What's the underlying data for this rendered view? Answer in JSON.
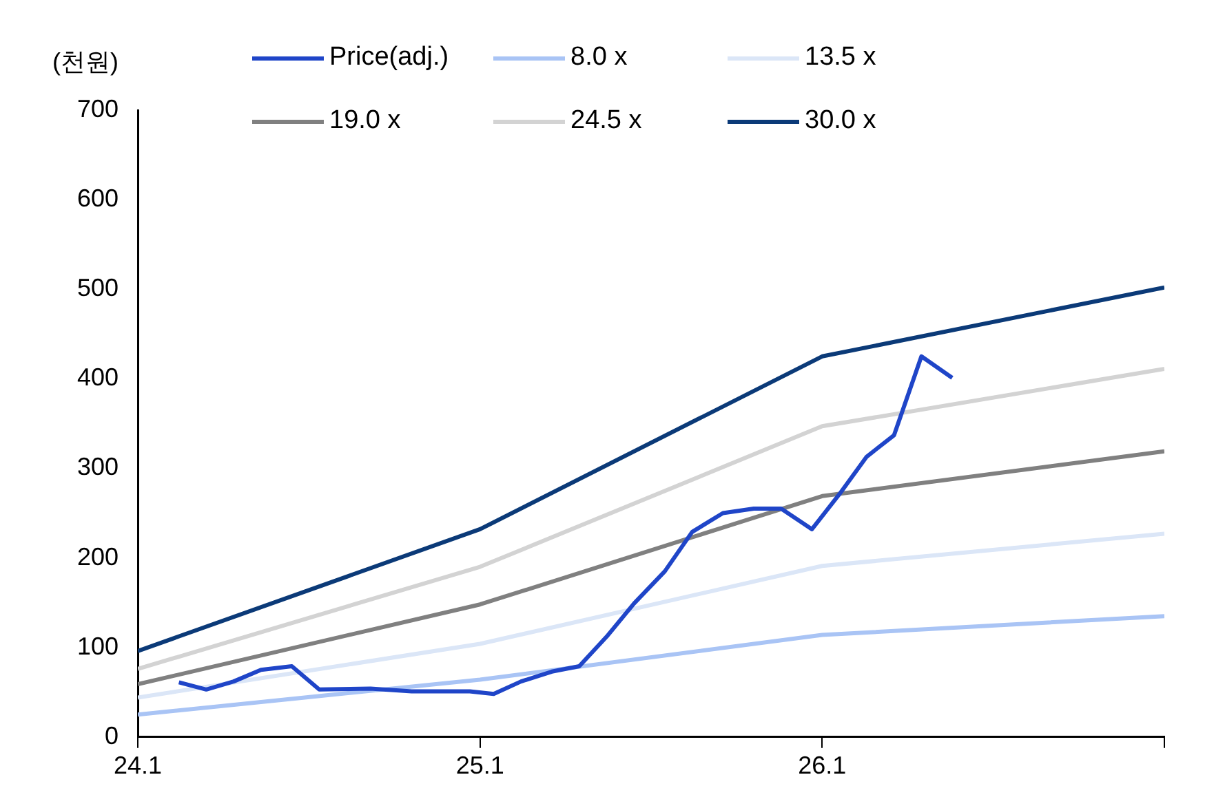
{
  "chart_data": {
    "type": "line",
    "ylabel": "(천원)",
    "xlim": [
      24.1,
      27.1
    ],
    "xticks": [
      24.1,
      25.1,
      26.1,
      {
        "value": 27.1,
        "label": null
      }
    ],
    "ylim": [
      0,
      700
    ],
    "yticks": [
      0,
      100,
      200,
      300,
      400,
      500,
      600,
      700
    ],
    "grid": false,
    "legend": "top",
    "marker": "none",
    "line_style": "solid",
    "series": [
      {
        "name": "Price(adj.)",
        "color": "#1f45c8",
        "x": [
          24.22,
          24.3,
          24.38,
          24.46,
          24.55,
          24.63,
          24.78,
          24.9,
          25.07,
          25.14,
          25.22,
          25.31,
          25.39,
          25.47,
          25.55,
          25.64,
          25.72,
          25.81,
          25.9,
          25.98,
          26.07,
          26.15,
          26.23,
          26.31,
          26.39,
          26.48
        ],
        "values": [
          61,
          53,
          62,
          75,
          79,
          53,
          54,
          51,
          51,
          48,
          62,
          73,
          79,
          112,
          149,
          185,
          229,
          250,
          255,
          255,
          232,
          271,
          313,
          337,
          425,
          401
        ]
      },
      {
        "name": "8.0 x",
        "color": "#a9c4f5",
        "x": [
          24.1,
          25.1,
          26.1,
          27.1
        ],
        "values": [
          25,
          64,
          114,
          135
        ]
      },
      {
        "name": "13.5 x",
        "color": "#dbe6f7",
        "x": [
          24.1,
          25.1,
          26.1,
          27.1
        ],
        "values": [
          44,
          104,
          191,
          227
        ]
      },
      {
        "name": "19.0 x",
        "color": "#808080",
        "x": [
          24.1,
          25.1,
          26.1,
          27.1
        ],
        "values": [
          59,
          148,
          269,
          319
        ]
      },
      {
        "name": "24.5 x",
        "color": "#d3d3d3",
        "x": [
          24.1,
          25.1,
          26.1,
          27.1
        ],
        "values": [
          76,
          190,
          347,
          411
        ]
      },
      {
        "name": "30.0 x",
        "color": "#0b3a78",
        "x": [
          24.1,
          25.1,
          26.1,
          27.1
        ],
        "values": [
          96,
          232,
          425,
          502
        ]
      }
    ]
  }
}
